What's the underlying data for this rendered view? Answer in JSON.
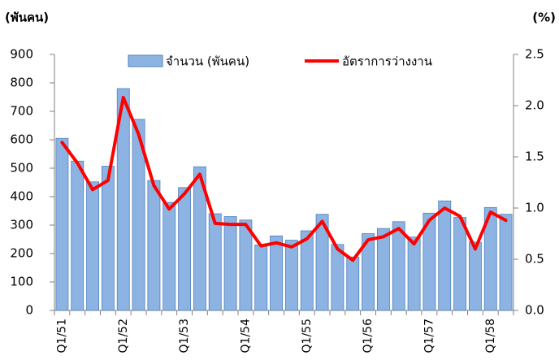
{
  "chart_data": {
    "type": "bar_line",
    "y_label": "(พันคน)",
    "y2_label": "(%)",
    "categories": [
      "Q1/51",
      null,
      null,
      null,
      "Q1/52",
      null,
      null,
      null,
      "Q1/53",
      null,
      null,
      null,
      "Q1/54",
      null,
      null,
      null,
      "Q1/55",
      null,
      null,
      null,
      "Q1/56",
      null,
      null,
      null,
      "Q1/57",
      null,
      null,
      null,
      "Q1/58",
      null
    ],
    "series": [
      {
        "name": "จำนวน (พันคน)",
        "type": "bar",
        "color": "#8db3e2",
        "axis": "y",
        "values": [
          605,
          525,
          452,
          507,
          780,
          672,
          457,
          380,
          432,
          505,
          340,
          330,
          318,
          230,
          262,
          247,
          280,
          338,
          232,
          188,
          270,
          288,
          312,
          258,
          342,
          385,
          327,
          240,
          362,
          338
        ]
      },
      {
        "name": "อัตราการว่างงาน",
        "type": "line",
        "color": "#ff0000",
        "axis": "y2",
        "values": [
          1.64,
          1.44,
          1.18,
          1.27,
          2.08,
          1.72,
          1.22,
          0.99,
          1.14,
          1.33,
          0.85,
          0.84,
          0.84,
          0.63,
          0.66,
          0.62,
          0.7,
          0.87,
          0.6,
          0.49,
          0.69,
          0.72,
          0.8,
          0.65,
          0.88,
          1.0,
          0.92,
          0.6,
          0.96,
          0.88
        ]
      }
    ],
    "ylim": [
      0,
      900
    ],
    "yticks": [
      0,
      100,
      200,
      300,
      400,
      500,
      600,
      700,
      800,
      900
    ],
    "y2lim": [
      0,
      2.5
    ],
    "y2ticks": [
      {
        "value": 0,
        "label": "0.0"
      },
      {
        "value": 0.5,
        "label": "0.5"
      },
      {
        "value": 1,
        "label": "1.0"
      },
      {
        "value": 1.5,
        "label": "1.5"
      },
      {
        "value": 2,
        "label": "2.0"
      },
      {
        "value": 2.5,
        "label": "2.5"
      }
    ],
    "grid": false,
    "legend": "top"
  }
}
